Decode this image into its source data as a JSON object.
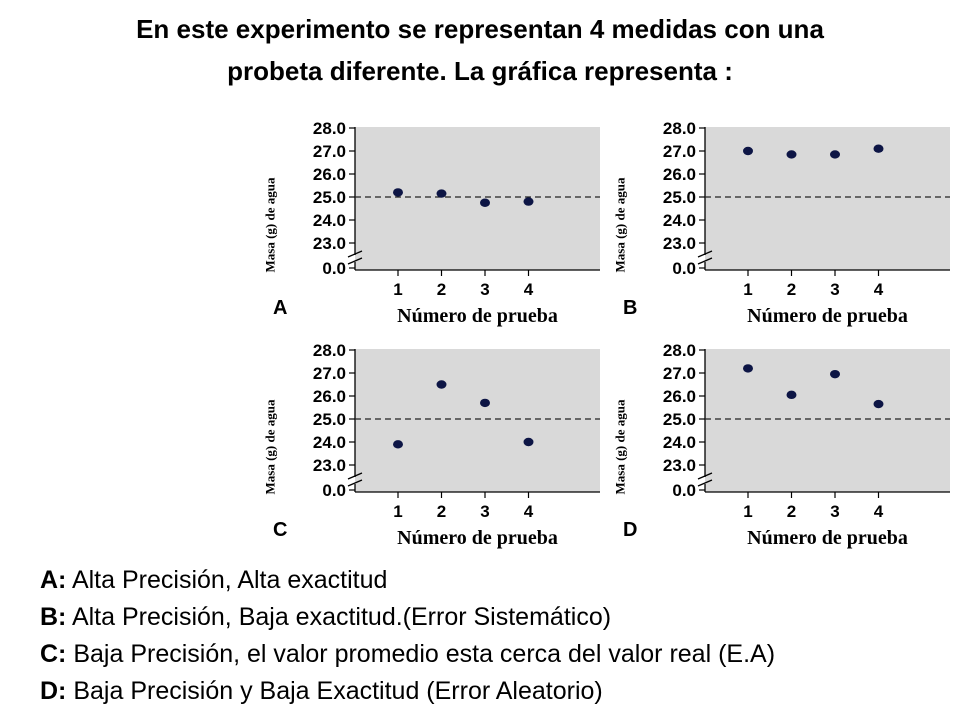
{
  "title_lines": [
    "En este experimento se representan 4 medidas con una",
    "probeta diferente. La gráfica representa :"
  ],
  "chart_data": [
    {
      "type": "scatter",
      "panel": "A",
      "x": [
        1,
        2,
        3,
        4
      ],
      "y": [
        25.2,
        25.15,
        24.75,
        24.8
      ],
      "xlabel": "Número de prueba",
      "ylabel": "Masa (g) de agua",
      "xticks": [
        "1",
        "2",
        "3",
        "4"
      ],
      "yticks": [
        "28.0",
        "27.0",
        "26.0",
        "25.0",
        "24.0",
        "23.0",
        "0.0"
      ],
      "ylim": [
        23.0,
        28.0
      ],
      "axis_break": true,
      "reference_value": 25.0,
      "grid": false
    },
    {
      "type": "scatter",
      "panel": "B",
      "x": [
        1,
        2,
        3,
        4
      ],
      "y": [
        27.0,
        26.85,
        26.85,
        27.1
      ],
      "xlabel": "Número de prueba",
      "ylabel": "Masa (g) de agua",
      "xticks": [
        "1",
        "2",
        "3",
        "4"
      ],
      "yticks": [
        "28.0",
        "27.0",
        "26.0",
        "25.0",
        "24.0",
        "23.0",
        "0.0"
      ],
      "ylim": [
        23.0,
        28.0
      ],
      "axis_break": true,
      "reference_value": 25.0,
      "grid": false
    },
    {
      "type": "scatter",
      "panel": "C",
      "x": [
        1,
        2,
        3,
        4
      ],
      "y": [
        23.9,
        26.5,
        25.7,
        24.0
      ],
      "xlabel": "Número de prueba",
      "ylabel": "Masa (g) de agua",
      "xticks": [
        "1",
        "2",
        "3",
        "4"
      ],
      "yticks": [
        "28.0",
        "27.0",
        "26.0",
        "25.0",
        "24.0",
        "23.0",
        "0.0"
      ],
      "ylim": [
        23.0,
        28.0
      ],
      "axis_break": true,
      "reference_value": 25.0,
      "grid": false
    },
    {
      "type": "scatter",
      "panel": "D",
      "x": [
        1,
        2,
        3,
        4
      ],
      "y": [
        27.2,
        26.05,
        26.95,
        25.65
      ],
      "xlabel": "Número de prueba",
      "ylabel": "Masa (g) de agua",
      "xticks": [
        "1",
        "2",
        "3",
        "4"
      ],
      "yticks": [
        "28.0",
        "27.0",
        "26.0",
        "25.0",
        "24.0",
        "23.0",
        "0.0"
      ],
      "ylim": [
        23.0,
        28.0
      ],
      "axis_break": true,
      "reference_value": 25.0,
      "grid": false
    }
  ],
  "legend_rows": [
    {
      "key": "A:",
      "text": " Alta Precisión, Alta exactitud"
    },
    {
      "key": "B:",
      "text": " Alta Precisión, Baja exactitud.(Error Sistemático)"
    },
    {
      "key": "C:",
      "text": " Baja Precisión, el valor promedio esta cerca del valor real (E.A)"
    },
    {
      "key": "D:",
      "text": " Baja Precisión y Baja Exactitud (Error Aleatorio)"
    }
  ],
  "colors": {
    "plot_bg": "#d9d9d9",
    "point": "#0d1545",
    "axis": "#000000"
  }
}
